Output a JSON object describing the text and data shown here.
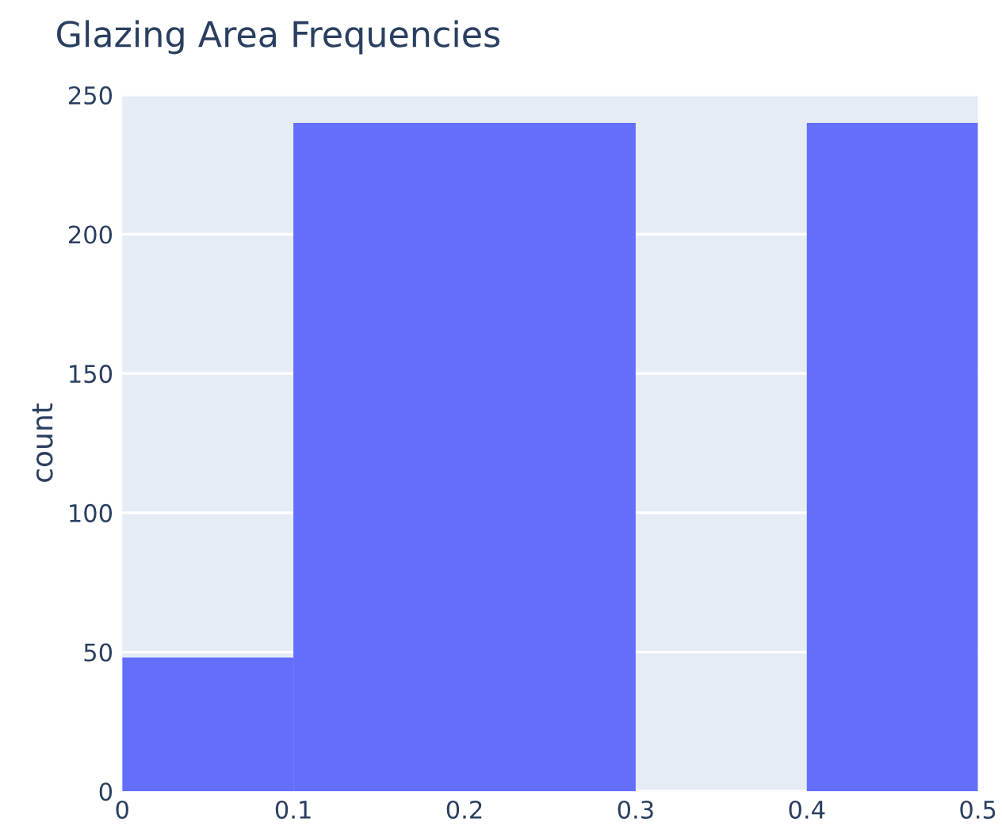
{
  "chart_data": {
    "type": "histogram",
    "title": "Glazing Area Frequencies",
    "ylabel": "count",
    "bins": [
      0,
      0.1,
      0.2,
      0.3,
      0.4,
      0.5
    ],
    "values": [
      48,
      240,
      240,
      0,
      240
    ],
    "color": "#636efa",
    "xlim": [
      0,
      0.5
    ],
    "xticks": [
      0,
      0.1,
      0.2,
      0.3,
      0.4,
      0.5
    ],
    "ylim": [
      0,
      250
    ],
    "yticks": [
      0,
      50,
      100,
      150,
      200,
      250
    ],
    "grid": "y"
  }
}
